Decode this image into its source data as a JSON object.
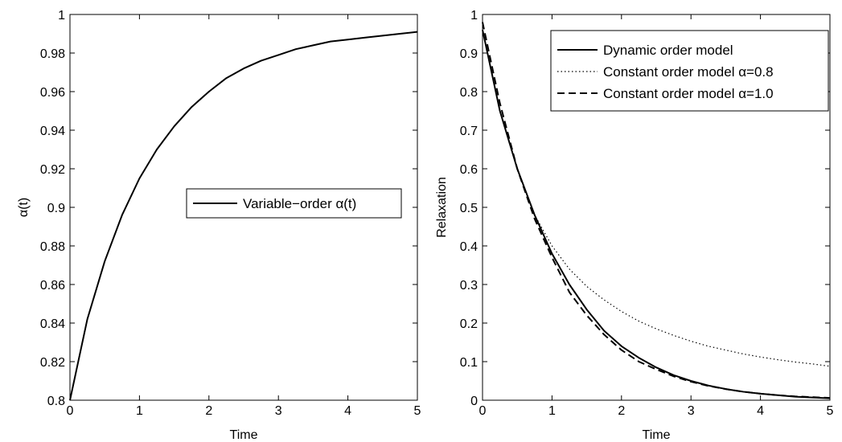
{
  "chart_data": [
    {
      "type": "line",
      "title": "",
      "xlabel": "Time",
      "ylabel": "α(t)",
      "xlim": [
        0,
        5
      ],
      "ylim": [
        0.8,
        1.0
      ],
      "xticks": [
        0,
        1,
        2,
        3,
        4,
        5
      ],
      "xtick_labels": [
        "0",
        "1",
        "2",
        "3",
        "4",
        "5"
      ],
      "yticks": [
        0.8,
        0.82,
        0.84,
        0.86,
        0.88,
        0.9,
        0.92,
        0.94,
        0.96,
        0.98,
        1.0
      ],
      "ytick_labels": [
        "0.8",
        "0.82",
        "0.84",
        "0.86",
        "0.88",
        "0.9",
        "0.92",
        "0.94",
        "0.96",
        "0.98",
        "1"
      ],
      "grid": false,
      "legend_position": "center-right",
      "series": [
        {
          "name": "Variable−order α(t)",
          "style": "solid",
          "color": "#000000",
          "x": [
            0,
            0.25,
            0.5,
            0.75,
            1,
            1.25,
            1.5,
            1.75,
            2,
            2.25,
            2.5,
            2.75,
            3,
            3.25,
            3.5,
            3.75,
            4,
            4.25,
            4.5,
            4.75,
            5
          ],
          "y": [
            0.8,
            0.842,
            0.872,
            0.896,
            0.915,
            0.93,
            0.942,
            0.952,
            0.96,
            0.967,
            0.972,
            0.976,
            0.979,
            0.982,
            0.984,
            0.986,
            0.987,
            0.988,
            0.989,
            0.99,
            0.991
          ]
        }
      ]
    },
    {
      "type": "line",
      "title": "",
      "xlabel": "Time",
      "ylabel": "Relaxation",
      "xlim": [
        0,
        5
      ],
      "ylim": [
        0,
        1
      ],
      "xticks": [
        0,
        1,
        2,
        3,
        4,
        5
      ],
      "xtick_labels": [
        "0",
        "1",
        "2",
        "3",
        "4",
        "5"
      ],
      "yticks": [
        0,
        0.1,
        0.2,
        0.3,
        0.4,
        0.5,
        0.6,
        0.7,
        0.8,
        0.9,
        1
      ],
      "ytick_labels": [
        "0",
        "0.1",
        "0.2",
        "0.3",
        "0.4",
        "0.5",
        "0.6",
        "0.7",
        "0.8",
        "0.9",
        "1"
      ],
      "grid": false,
      "legend_position": "top-right",
      "series": [
        {
          "name": "Dynamic order model",
          "style": "solid",
          "color": "#000000",
          "x": [
            0,
            0.25,
            0.5,
            0.75,
            1,
            1.25,
            1.5,
            1.75,
            2,
            2.25,
            2.5,
            2.75,
            3,
            3.25,
            3.5,
            3.75,
            4,
            4.25,
            4.5,
            4.75,
            5
          ],
          "y": [
            0.96,
            0.75,
            0.6,
            0.48,
            0.38,
            0.3,
            0.235,
            0.18,
            0.14,
            0.11,
            0.085,
            0.065,
            0.05,
            0.038,
            0.029,
            0.022,
            0.017,
            0.013,
            0.009,
            0.007,
            0.005
          ]
        },
        {
          "name": "Constant order model α=0.8",
          "style": "dotted",
          "color": "#000000",
          "x": [
            0,
            0.25,
            0.5,
            0.75,
            1,
            1.25,
            1.5,
            1.75,
            2,
            2.25,
            2.5,
            2.75,
            3,
            3.25,
            3.5,
            3.75,
            4,
            4.25,
            4.5,
            4.75,
            5
          ],
          "y": [
            0.96,
            0.75,
            0.6,
            0.48,
            0.4,
            0.34,
            0.295,
            0.26,
            0.23,
            0.205,
            0.185,
            0.168,
            0.153,
            0.14,
            0.13,
            0.12,
            0.112,
            0.105,
            0.099,
            0.094,
            0.088
          ]
        },
        {
          "name": "Constant order model α=1.0",
          "style": "dashed",
          "color": "#000000",
          "x": [
            0,
            0.25,
            0.5,
            0.75,
            1,
            1.25,
            1.5,
            1.75,
            2,
            2.25,
            2.5,
            2.75,
            3,
            3.25,
            3.5,
            3.75,
            4,
            4.25,
            4.5,
            4.75,
            5
          ],
          "y": [
            0.98,
            0.77,
            0.6,
            0.47,
            0.37,
            0.28,
            0.22,
            0.17,
            0.13,
            0.1,
            0.08,
            0.062,
            0.048,
            0.037,
            0.029,
            0.022,
            0.017,
            0.013,
            0.01,
            0.008,
            0.006
          ]
        }
      ]
    }
  ]
}
